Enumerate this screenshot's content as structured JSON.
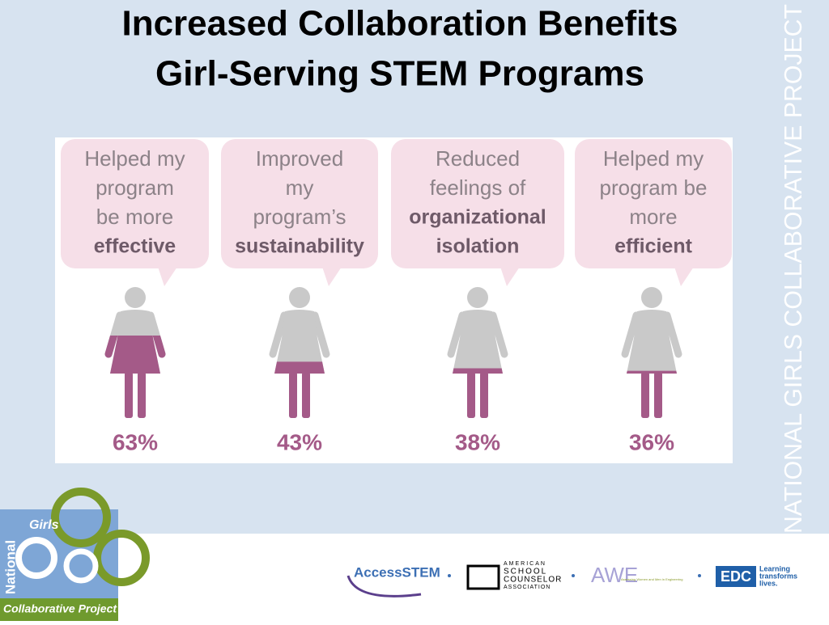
{
  "chart_data": {
    "type": "pictograph",
    "title": [
      "Increased Collaboration Benefits",
      "Girl-Serving STEM Programs"
    ],
    "categories": [
      {
        "lines": [
          "Helped my",
          "program",
          "be more"
        ],
        "emphasis": [
          "effective"
        ]
      },
      {
        "lines": [
          "Improved",
          "my",
          "program’s"
        ],
        "emphasis": [
          "sustainability"
        ]
      },
      {
        "lines": [
          "Reduced",
          "feelings of"
        ],
        "emphasis": [
          "organizational",
          "isolation"
        ]
      },
      {
        "lines": [
          "Helped my",
          "program be",
          "more"
        ],
        "emphasis": [
          "efficient"
        ]
      }
    ],
    "values": [
      63,
      43,
      38,
      36
    ],
    "value_labels": [
      "63%",
      "43%",
      "38%",
      "36%"
    ],
    "ylim": [
      0,
      100
    ],
    "color": "#a45a88",
    "base_color": "#c9c9c9"
  },
  "sidebar": "NATIONAL GIRLS COLLABORATIVE PROJECT",
  "footer": {
    "ngcp_logo": [
      "National",
      "Girls",
      "Collaborative Project"
    ],
    "partners": [
      "AccessSTEM",
      [
        "AMERICAN",
        "SCHOOL",
        "COUNSELOR",
        "ASSOCIATION"
      ],
      "AWE",
      "Assessing Women and Men in Engineering",
      "EDC",
      [
        "Learning",
        "transforms",
        "lives."
      ]
    ]
  }
}
